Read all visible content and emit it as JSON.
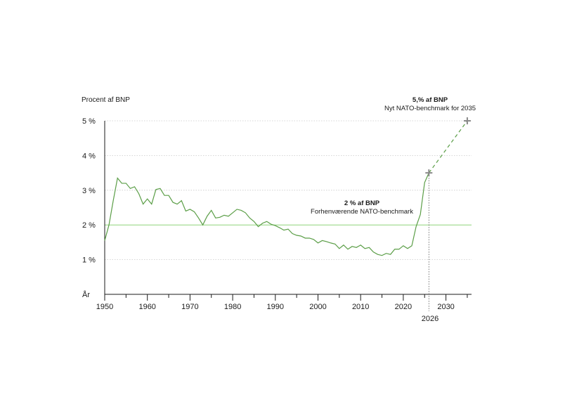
{
  "chart_data": {
    "type": "line",
    "ylabel": "Procent af BNP",
    "xlabel": "År",
    "xlim": [
      1950,
      2036
    ],
    "ylim": [
      0,
      5
    ],
    "yticks": [
      1,
      2,
      3,
      4,
      5
    ],
    "ytick_labels": [
      "1 %",
      "2 %",
      "3 %",
      "4 %",
      "5 %"
    ],
    "xticks": [
      1950,
      1960,
      1970,
      1980,
      1990,
      2000,
      2010,
      2020,
      2030
    ],
    "xtick_labels": [
      "1950",
      "1960",
      "1970",
      "1980",
      "1990",
      "2000",
      "2010",
      "2020",
      "2030"
    ],
    "highlight_year": 2026,
    "highlight_year_label": "2026",
    "grid": "horizontal dotted",
    "series": [
      {
        "color": "#5b9e47",
        "x": [
          1950,
          1951,
          1952,
          1953,
          1954,
          1955,
          1956,
          1957,
          1958,
          1959,
          1960,
          1961,
          1962,
          1963,
          1964,
          1965,
          1966,
          1967,
          1968,
          1969,
          1970,
          1971,
          1972,
          1973,
          1974,
          1975,
          1976,
          1977,
          1978,
          1979,
          1980,
          1981,
          1982,
          1983,
          1984,
          1985,
          1986,
          1987,
          1988,
          1989,
          1990,
          1991,
          1992,
          1993,
          1994,
          1995,
          1996,
          1997,
          1998,
          1999,
          2000,
          2001,
          2002,
          2003,
          2004,
          2005,
          2006,
          2007,
          2008,
          2009,
          2010,
          2011,
          2012,
          2013,
          2014,
          2015,
          2016,
          2017,
          2018,
          2019,
          2020,
          2021,
          2022,
          2023,
          2024,
          2025,
          2026
        ],
        "values": [
          1.55,
          2.0,
          2.7,
          3.35,
          3.2,
          3.2,
          3.05,
          3.1,
          2.9,
          2.6,
          2.75,
          2.6,
          3.02,
          3.05,
          2.85,
          2.85,
          2.65,
          2.6,
          2.7,
          2.4,
          2.45,
          2.38,
          2.2,
          2.0,
          2.25,
          2.42,
          2.2,
          2.22,
          2.28,
          2.25,
          2.35,
          2.45,
          2.42,
          2.35,
          2.2,
          2.1,
          1.95,
          2.05,
          2.1,
          2.02,
          1.98,
          1.92,
          1.85,
          1.88,
          1.75,
          1.7,
          1.68,
          1.62,
          1.62,
          1.58,
          1.48,
          1.55,
          1.52,
          1.48,
          1.45,
          1.32,
          1.42,
          1.3,
          1.38,
          1.35,
          1.42,
          1.32,
          1.35,
          1.22,
          1.15,
          1.12,
          1.18,
          1.15,
          1.3,
          1.3,
          1.4,
          1.32,
          1.4,
          1.95,
          2.3,
          3.22,
          3.5
        ]
      },
      {
        "color": "#5b9e47",
        "dashed": true,
        "x": [
          2026,
          2035
        ],
        "values": [
          3.5,
          5.0
        ]
      }
    ],
    "reference_lines": [
      {
        "y": 2,
        "color": "#8fd47a"
      }
    ],
    "markers": [
      {
        "x": 2026,
        "y": 3.5
      },
      {
        "x": 2035,
        "y": 5.0
      }
    ],
    "annotations": [
      {
        "title": "2 % af BNP",
        "subtitle": "Forhenværende NATO-benchmark"
      },
      {
        "title": "5,% af BNP",
        "subtitle": "Nyt NATO-benchmark for 2035"
      }
    ]
  }
}
